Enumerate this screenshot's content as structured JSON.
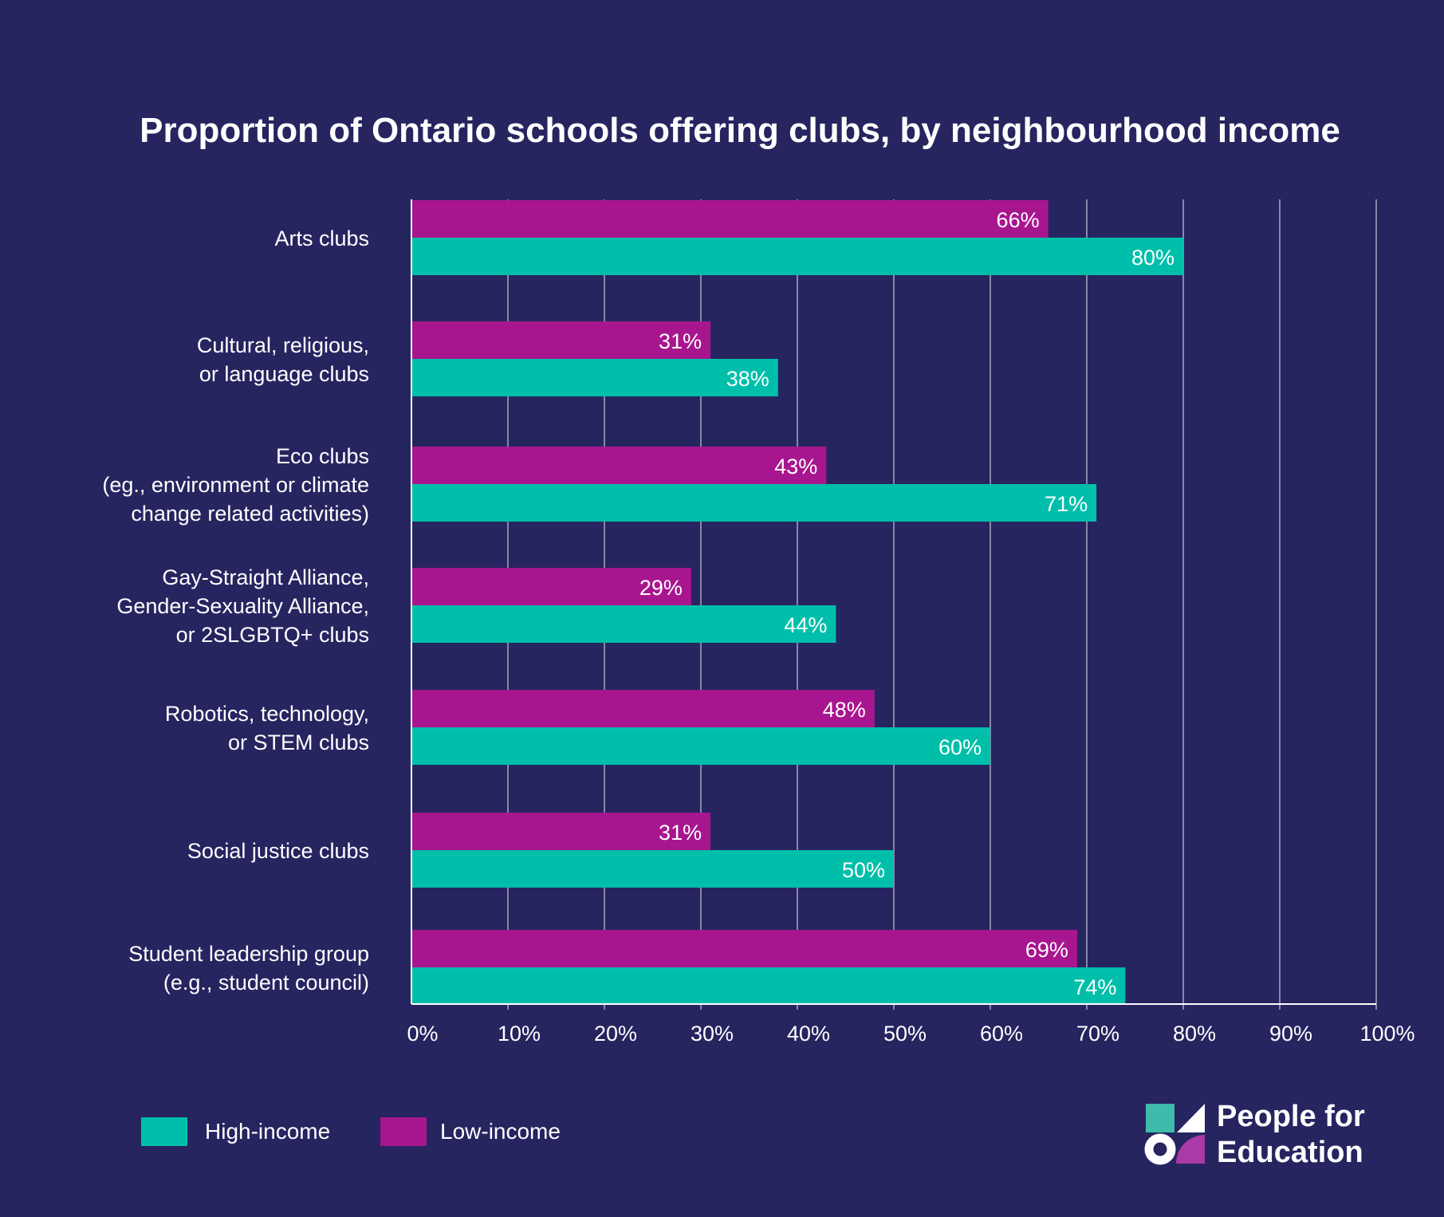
{
  "chart_data": {
    "type": "bar",
    "orientation": "horizontal",
    "title": "Proportion of Ontario schools offering clubs, by neighbourhood income",
    "xlabel": "",
    "ylabel": "",
    "xlim": [
      0,
      100
    ],
    "x_ticks": [
      "0%",
      "10%",
      "20%",
      "30%",
      "40%",
      "50%",
      "60%",
      "70%",
      "80%",
      "90%",
      "100%"
    ],
    "grid": true,
    "legend_position": "bottom-left",
    "categories": [
      [
        "Arts clubs"
      ],
      [
        "Cultural, religious,",
        "or language clubs"
      ],
      [
        "Eco clubs",
        "(eg., environment or climate",
        "change related activities)"
      ],
      [
        "Gay-Straight Alliance,",
        "Gender-Sexuality Alliance,",
        "or 2SLGBTQ+ clubs"
      ],
      [
        "Robotics, technology,",
        "or STEM clubs"
      ],
      [
        "Social justice clubs"
      ],
      [
        "Student leadership group",
        "(e.g., student council)"
      ]
    ],
    "series": [
      {
        "name": "Low-income",
        "color": "#A8168F",
        "values": [
          66,
          31,
          43,
          29,
          48,
          31,
          69
        ],
        "labels": [
          "66%",
          "31%",
          "43%",
          "29%",
          "48%",
          "31%",
          "69%"
        ]
      },
      {
        "name": "High-income",
        "color": "#00BFAA",
        "values": [
          80,
          38,
          71,
          44,
          60,
          50,
          74
        ],
        "labels": [
          "80%",
          "38%",
          "71%",
          "44%",
          "60%",
          "50%",
          "74%"
        ]
      }
    ],
    "legend": [
      {
        "name": "High-income",
        "color": "#00BFAA"
      },
      {
        "name": "Low-income",
        "color": "#A8168F"
      }
    ]
  },
  "colors": {
    "background": "#262560",
    "grid": "#c8c8d8"
  },
  "logo": {
    "text_line1": "People for",
    "text_line2": "Education"
  }
}
